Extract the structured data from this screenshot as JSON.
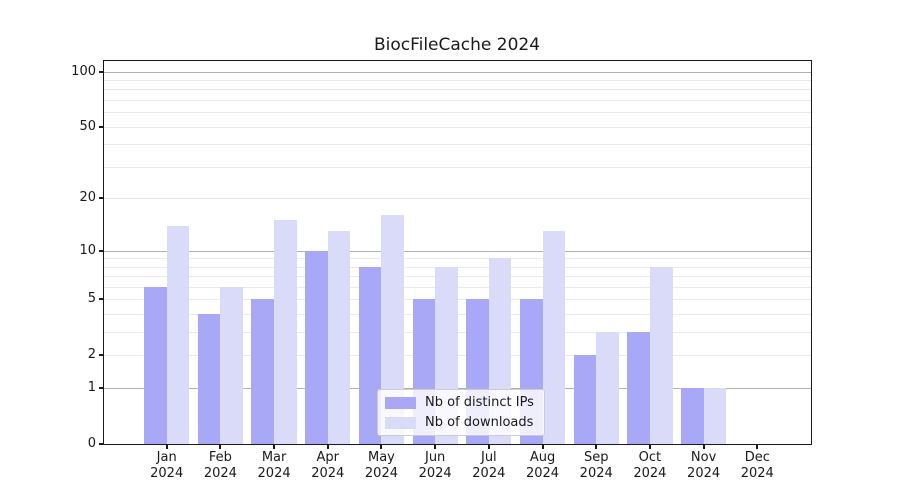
{
  "chart_data": {
    "type": "bar",
    "title": "BiocFileCache 2024",
    "categories": [
      "Jan",
      "Feb",
      "Mar",
      "Apr",
      "May",
      "Jun",
      "Jul",
      "Aug",
      "Sep",
      "Oct",
      "Nov",
      "Dec"
    ],
    "x_year_label": "2024",
    "series": [
      {
        "name": "Nb of distinct IPs",
        "color": "#a8a8f6",
        "values": [
          6,
          4,
          5,
          10,
          8,
          5,
          5,
          5,
          2,
          3,
          1,
          0
        ]
      },
      {
        "name": "Nb of downloads",
        "color": "#dadaf9",
        "values": [
          14,
          6,
          15,
          13,
          16,
          8,
          9,
          13,
          3,
          8,
          1,
          0
        ]
      }
    ],
    "y_axis": {
      "scale": "log1p",
      "tick_labels": [
        100,
        50,
        20,
        10,
        5,
        2,
        1,
        0
      ],
      "major_gridlines": [
        100,
        10,
        1
      ],
      "minor_gridlines": [
        90,
        80,
        70,
        60,
        50,
        40,
        30,
        20,
        9,
        8,
        7,
        6,
        5,
        4,
        3,
        2
      ],
      "range": [
        0,
        116
      ]
    },
    "legend": {
      "position": "lower-center-inside"
    },
    "grid": true
  },
  "colors": {
    "background": "#ffffff",
    "bar_distinct_ips": "#a8a8f6",
    "bar_downloads": "#dadaf9",
    "major_gridline": "#b0b0b0",
    "minor_gridline": "#e9e9ee",
    "axis": "#1a1a1a",
    "text": "#1a1a1a",
    "legend_border": "#cccccc"
  }
}
